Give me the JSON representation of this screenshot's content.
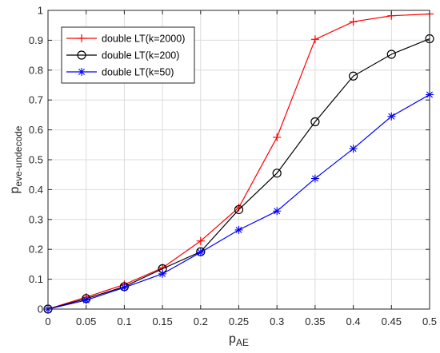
{
  "chart_data": {
    "type": "line",
    "title": "",
    "xlabel": {
      "main": "p",
      "sub": "AE"
    },
    "ylabel": {
      "main": "p",
      "sub": "eve-undecode"
    },
    "xlim": [
      0,
      0.5
    ],
    "ylim": [
      0,
      1
    ],
    "grid": true,
    "legend_position": "top-left",
    "x_ticks": [
      "0",
      "0.05",
      "0.1",
      "0.15",
      "0.2",
      "0.25",
      "0.3",
      "0.35",
      "0.4",
      "0.45",
      "0.5"
    ],
    "y_ticks": [
      "0",
      "0.1",
      "0.2",
      "0.3",
      "0.4",
      "0.5",
      "0.6",
      "0.7",
      "0.8",
      "0.9",
      "1"
    ],
    "x": [
      0,
      0.05,
      0.1,
      0.15,
      0.2,
      0.25,
      0.3,
      0.35,
      0.4,
      0.45,
      0.5
    ],
    "series": [
      {
        "name": "double LT(k=2000)",
        "color": "#ff0000",
        "marker": "plus",
        "values": [
          0.0,
          0.04,
          0.082,
          0.138,
          0.228,
          0.34,
          0.575,
          0.903,
          0.962,
          0.982,
          0.988
        ]
      },
      {
        "name": "double LT(k=200)",
        "color": "#000000",
        "marker": "circle",
        "values": [
          0.0,
          0.035,
          0.075,
          0.135,
          0.192,
          0.333,
          0.455,
          0.627,
          0.78,
          0.853,
          0.905
        ]
      },
      {
        "name": "double LT(k=50)",
        "color": "#0000ff",
        "marker": "asterisk",
        "values": [
          0.0,
          0.03,
          0.072,
          0.118,
          0.19,
          0.265,
          0.328,
          0.437,
          0.537,
          0.645,
          0.718
        ]
      }
    ]
  }
}
